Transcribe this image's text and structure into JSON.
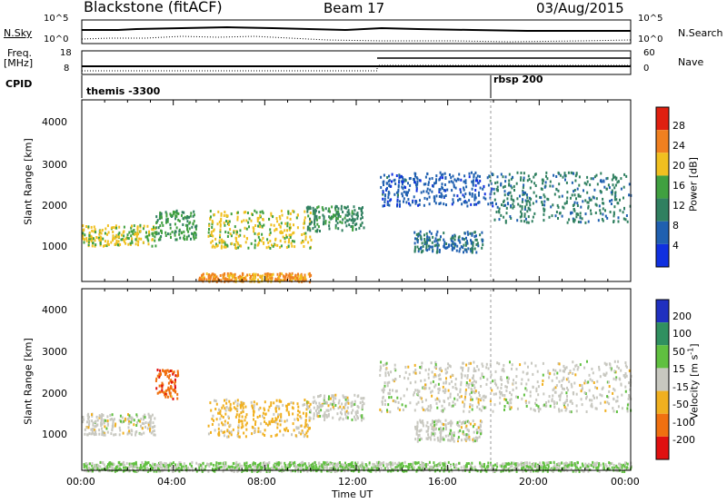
{
  "header": {
    "station": "Blackstone (fitACF)",
    "beam": "Beam 17",
    "date": "03/Aug/2015"
  },
  "top_panels": {
    "nsky_label": "N.Sky",
    "nsky_ticks": [
      "10^5",
      "10^0"
    ],
    "nsearch_label": "N.Search",
    "nsearch_ticks": [
      "10^5",
      "10^0"
    ],
    "freq_label_1": "Freq.",
    "freq_label_2": "[MHz]",
    "freq_ticks": [
      "18",
      "8"
    ],
    "nave_label": "Nave",
    "nave_ticks": [
      "60",
      "0"
    ],
    "cpid_label": "CPID",
    "cpid_entries": [
      "themis -3300",
      "rbsp 200"
    ]
  },
  "power_panel": {
    "ylabel": "Slant Range [km]",
    "yticks": [
      "4000",
      "3000",
      "2000",
      "1000"
    ],
    "colorbar_label": "Power [dB]",
    "colorbar_ticks": [
      "28",
      "24",
      "20",
      "16",
      "12",
      "8",
      "4"
    ]
  },
  "velocity_panel": {
    "ylabel": "Slant Range [km]",
    "yticks": [
      "4000",
      "3000",
      "2000",
      "1000"
    ],
    "colorbar_label": "Velocity [m s",
    "colorbar_label_sup": "-1",
    "colorbar_label_end": "]",
    "colorbar_ticks": [
      "200",
      "100",
      "50",
      "15",
      "-15",
      "-50",
      "-100",
      "-200"
    ]
  },
  "xaxis": {
    "label": "Time UT",
    "ticks": [
      "00:00",
      "04:00",
      "08:00",
      "12:00",
      "16:00",
      "20:00",
      "00:00"
    ]
  },
  "chart_data": [
    {
      "type": "heatmap",
      "title": "Power [dB]",
      "xlabel": "",
      "ylabel": "Slant Range [km]",
      "xlim_hours": [
        0,
        24
      ],
      "ylim": [
        180,
        4500
      ],
      "clim": [
        0,
        30
      ],
      "colors": [
        "#1030e0",
        "#2060b0",
        "#308060",
        "#40a040",
        "#f0c020",
        "#f08020",
        "#e02010"
      ],
      "regions": [
        {
          "t": [
            0.0,
            3.2
          ],
          "r": [
            1050,
            1550
          ],
          "v": 18
        },
        {
          "t": [
            3.2,
            5.0
          ],
          "r": [
            1200,
            1900
          ],
          "v": 14
        },
        {
          "t": [
            5.5,
            10.0
          ],
          "r": [
            1000,
            1900
          ],
          "v": 18
        },
        {
          "t": [
            9.8,
            12.3
          ],
          "r": [
            1400,
            2000
          ],
          "v": 12
        },
        {
          "t": [
            13.0,
            18.0
          ],
          "r": [
            2000,
            2800
          ],
          "v": 6
        },
        {
          "t": [
            14.5,
            17.5
          ],
          "r": [
            900,
            1400
          ],
          "v": 8
        },
        {
          "t": [
            18.0,
            24.0
          ],
          "r": [
            1600,
            2800
          ],
          "v": 10
        },
        {
          "t": [
            5.0,
            10.0
          ],
          "r": [
            200,
            400
          ],
          "v": 22
        }
      ]
    },
    {
      "type": "heatmap",
      "title": "Velocity [m s-1]",
      "xlabel": "Time UT",
      "ylabel": "Slant Range [km]",
      "xlim_hours": [
        0,
        24
      ],
      "ylim": [
        180,
        4500
      ],
      "clim": [
        -250,
        250
      ],
      "colors": [
        "#e01010",
        "#f07010",
        "#f0b020",
        "#c8c8c0",
        "#60c040",
        "#309060",
        "#2030c0"
      ],
      "regions": [
        {
          "t": [
            0.0,
            3.2
          ],
          "r": [
            1050,
            1550
          ],
          "v": 0
        },
        {
          "t": [
            3.2,
            4.2
          ],
          "r": [
            1900,
            2600
          ],
          "v": -150
        },
        {
          "t": [
            5.5,
            10.0
          ],
          "r": [
            1000,
            1900
          ],
          "v": -60
        },
        {
          "t": [
            9.8,
            12.3
          ],
          "r": [
            1400,
            2000
          ],
          "v": 0
        },
        {
          "t": [
            13.0,
            24.0
          ],
          "r": [
            1600,
            2800
          ],
          "v": 0
        },
        {
          "t": [
            14.5,
            17.5
          ],
          "r": [
            900,
            1400
          ],
          "v": 0
        },
        {
          "t": [
            0.0,
            24.0
          ],
          "r": [
            180,
            400
          ],
          "v": 40
        }
      ]
    }
  ]
}
